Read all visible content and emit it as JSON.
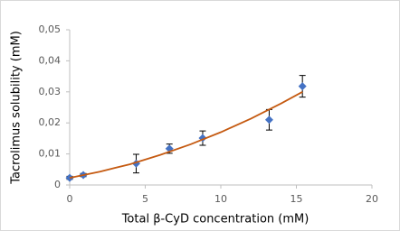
{
  "chart_data": {
    "type": "scatter",
    "xlabel": "Total β-CyD concentration (mM)",
    "ylabel": "Tacrolimus solubility (mM)",
    "xlim": [
      0,
      20
    ],
    "xticks": [
      0,
      5,
      10,
      15,
      20
    ],
    "ylim": [
      0,
      0.05
    ],
    "yticks": [
      0,
      {
        "value": 0.01,
        "label": "0,01"
      },
      {
        "value": 0.02,
        "label": "0,02"
      },
      {
        "value": 0.03,
        "label": "0,03"
      },
      {
        "value": 0.04,
        "label": "0,04"
      },
      {
        "value": 0.05,
        "label": "0,05"
      }
    ],
    "grid": false,
    "series": [
      {
        "color": "#4472c4",
        "marker": "diamond",
        "x": [
          0,
          0.9,
          4.4,
          6.6,
          8.8,
          13.2,
          15.4
        ],
        "values": [
          0.0023,
          0.0032,
          0.0069,
          0.0117,
          0.0151,
          0.021,
          0.0318
        ],
        "errors": [
          0.0005,
          0.0005,
          0.003,
          0.0015,
          0.0023,
          0.0033,
          0.0035
        ]
      },
      {
        "color": "#c55a11",
        "marker": "line",
        "x": [
          0,
          2,
          4,
          6,
          8,
          10,
          12,
          14,
          15.4
        ],
        "values": [
          0.0023,
          0.0043,
          0.0067,
          0.0097,
          0.0131,
          0.017,
          0.0214,
          0.0263,
          0.03
        ]
      }
    ]
  }
}
